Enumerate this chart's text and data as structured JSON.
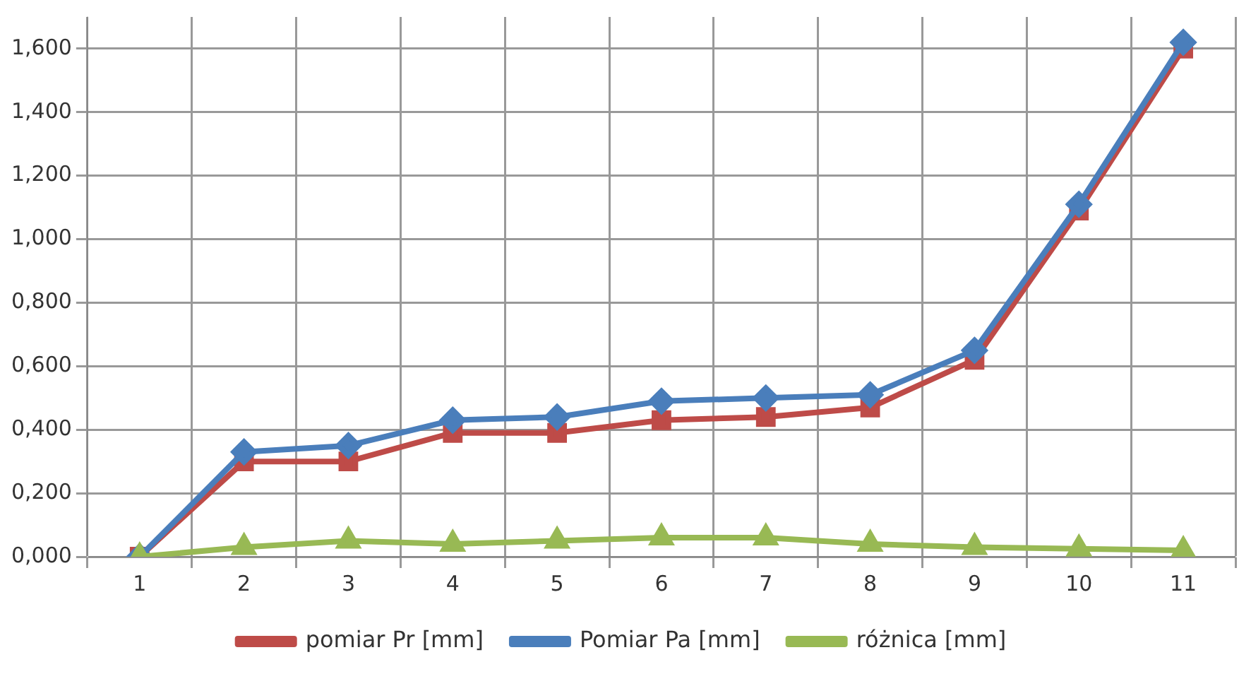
{
  "chart_data": {
    "type": "line",
    "categories": [
      "1",
      "2",
      "3",
      "4",
      "5",
      "6",
      "7",
      "8",
      "9",
      "10",
      "11"
    ],
    "series": [
      {
        "name": "pomiar Pr [mm]",
        "color": "#be4b48",
        "marker": "square",
        "values": [
          0,
          0.3,
          0.3,
          0.39,
          0.39,
          0.43,
          0.44,
          0.47,
          0.62,
          1.09,
          1.6
        ]
      },
      {
        "name": "Pomiar Pa [mm]",
        "color": "#4a7ebb",
        "marker": "diamond",
        "values": [
          0,
          0.33,
          0.35,
          0.43,
          0.44,
          0.49,
          0.5,
          0.51,
          0.65,
          1.11,
          1.62
        ]
      },
      {
        "name": "różnica [mm]",
        "color": "#98b954",
        "marker": "triangle",
        "values": [
          0,
          0.03,
          0.05,
          0.04,
          0.05,
          0.06,
          0.06,
          0.04,
          0.03,
          0.025,
          0.02
        ]
      }
    ],
    "ylim": [
      0,
      1.7
    ],
    "yticks": [
      {
        "value": 0,
        "label": "0,000"
      },
      {
        "value": 0.2,
        "label": "0,200"
      },
      {
        "value": 0.4,
        "label": "0,400"
      },
      {
        "value": 0.6,
        "label": "0,600"
      },
      {
        "value": 0.8,
        "label": "0,800"
      },
      {
        "value": 1.0,
        "label": "1,000"
      },
      {
        "value": 1.2,
        "label": "1,200"
      },
      {
        "value": 1.4,
        "label": "1,400"
      },
      {
        "value": 1.6,
        "label": "1,600"
      }
    ],
    "grid": true,
    "legend": "bottom"
  }
}
